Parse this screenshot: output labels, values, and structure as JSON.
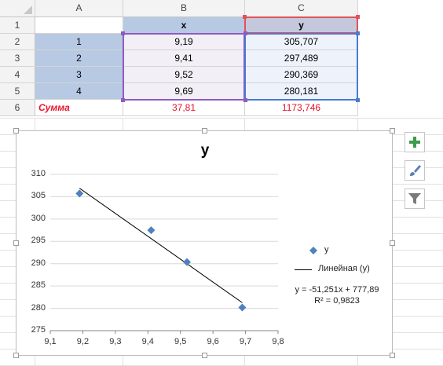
{
  "sheet": {
    "columns": [
      "A",
      "B",
      "C"
    ],
    "rows": [
      "1",
      "2",
      "3",
      "4",
      "5",
      "6"
    ],
    "header_x": "x",
    "header_y": "y",
    "data_rows": [
      {
        "a": "1",
        "x": "9,19",
        "y": "305,707"
      },
      {
        "a": "2",
        "x": "9,41",
        "y": "297,489"
      },
      {
        "a": "3",
        "x": "9,52",
        "y": "290,369"
      },
      {
        "a": "4",
        "x": "9,69",
        "y": "280,181"
      }
    ],
    "sum_label": "Сумма",
    "sum_x": "37,81",
    "sum_y": "1173,746",
    "colors": {
      "header_selected": "#b7c9e3",
      "sum_text": "#e8142a",
      "frame_x": "#8e5bbf",
      "frame_y": "#e15258",
      "frame_blue": "#4a7ad2"
    }
  },
  "chart": {
    "title": "y",
    "legend_series": "y",
    "legend_trend": "Линейная (y)",
    "equation": "y = -51,251x + 777,89",
    "r_squared": "R² = 0,9823"
  },
  "chart_data": {
    "type": "scatter",
    "title": "y",
    "xlabel": "",
    "ylabel": "",
    "xlim": [
      9.1,
      9.8
    ],
    "ylim": [
      275,
      310
    ],
    "x_ticks": [
      "9,1",
      "9,2",
      "9,3",
      "9,4",
      "9,5",
      "9,6",
      "9,7",
      "9,8"
    ],
    "y_ticks": [
      "310",
      "305",
      "300",
      "295",
      "290",
      "285",
      "280",
      "275"
    ],
    "series": [
      {
        "name": "y",
        "x": [
          9.19,
          9.41,
          9.52,
          9.69
        ],
        "y": [
          305.707,
          297.489,
          290.369,
          280.181
        ],
        "color": "#4f81bd",
        "marker": "diamond"
      }
    ],
    "trendline": {
      "name": "Линейная (y)",
      "slope": -51.251,
      "intercept": 777.89,
      "x_range": [
        9.19,
        9.69
      ]
    },
    "grid": true,
    "legend": "right"
  },
  "tools": {
    "icons": [
      "chart-elements-icon",
      "chart-styles-icon",
      "chart-filters-icon"
    ],
    "accent": "#3f9b4a"
  }
}
